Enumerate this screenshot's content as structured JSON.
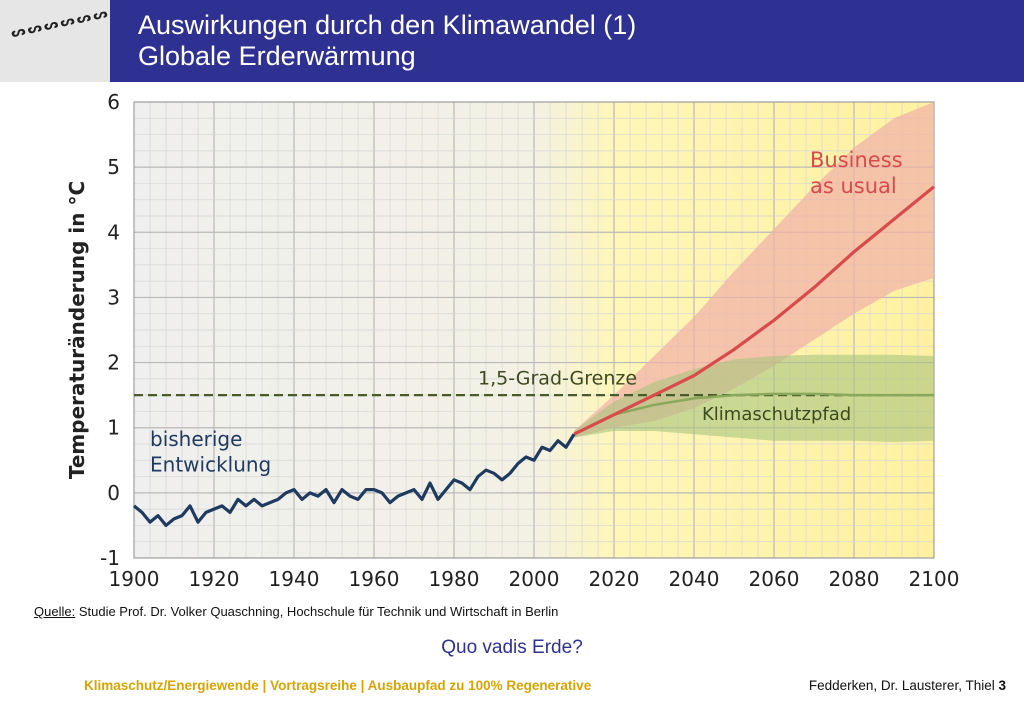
{
  "header": {
    "title_line1": "Auswirkungen durch den Klimawandel (1)",
    "title_line2": "Globale Erderwärmung",
    "background": "#2e3192"
  },
  "source": {
    "label": "Quelle:",
    "text": "Studie Prof. Dr. Volker Quaschning, Hochschule für Technik und Wirtschaft in Berlin"
  },
  "question": "Quo vadis Erde?",
  "footer": {
    "left": "Klimaschutz/Energiewende | Vortragsreihe | Ausbaupfad zu 100% Regenerative",
    "right_text": "Fedderken, Dr. Lausterer, Thiel",
    "page_number": "3"
  },
  "chart_data": {
    "type": "line",
    "ylabel": "Temperaturänderung in °C",
    "xlim": [
      1900,
      2100
    ],
    "ylim": [
      -1,
      6
    ],
    "x_ticks": [
      "1900",
      "1920",
      "1940",
      "1960",
      "1980",
      "2000",
      "2020",
      "2040",
      "2060",
      "2080",
      "2100"
    ],
    "y_ticks": [
      "-1",
      "0",
      "1",
      "2",
      "3",
      "4",
      "5",
      "6"
    ],
    "grid": true,
    "annotations": {
      "historical": [
        "bisherige",
        "Entwicklung"
      ],
      "business": [
        "Business",
        "as usual"
      ],
      "limit": "1,5-Grad-Grenze",
      "protection": "Klimaschutzpfad"
    },
    "limit_value": 1.5,
    "colors": {
      "historical": "#1f3a5f",
      "business": "#d94a4a",
      "business_band": "#f2b3a8",
      "protection": "#a9c47f",
      "limit": "#4a5a2a",
      "future_background": "#fff4a8"
    },
    "series": [
      {
        "key": "historical",
        "x": [
          1900,
          1902,
          1904,
          1906,
          1908,
          1910,
          1912,
          1914,
          1916,
          1918,
          1920,
          1922,
          1924,
          1926,
          1928,
          1930,
          1932,
          1934,
          1936,
          1938,
          1940,
          1942,
          1944,
          1946,
          1948,
          1950,
          1952,
          1954,
          1956,
          1958,
          1960,
          1962,
          1964,
          1966,
          1968,
          1970,
          1972,
          1974,
          1976,
          1978,
          1980,
          1982,
          1984,
          1986,
          1988,
          1990,
          1992,
          1994,
          1996,
          1998,
          2000,
          2002,
          2004,
          2006,
          2008,
          2010
        ],
        "y": [
          -0.2,
          -0.3,
          -0.45,
          -0.35,
          -0.5,
          -0.4,
          -0.35,
          -0.2,
          -0.45,
          -0.3,
          -0.25,
          -0.2,
          -0.3,
          -0.1,
          -0.2,
          -0.1,
          -0.2,
          -0.15,
          -0.1,
          0.0,
          0.05,
          -0.1,
          0.0,
          -0.05,
          0.05,
          -0.15,
          0.05,
          -0.05,
          -0.1,
          0.05,
          0.05,
          0.0,
          -0.15,
          -0.05,
          0.0,
          0.05,
          -0.1,
          0.15,
          -0.1,
          0.05,
          0.2,
          0.15,
          0.05,
          0.25,
          0.35,
          0.3,
          0.2,
          0.3,
          0.45,
          0.55,
          0.5,
          0.7,
          0.65,
          0.8,
          0.7,
          0.9
        ]
      },
      {
        "key": "business",
        "x": [
          2010,
          2020,
          2030,
          2040,
          2050,
          2060,
          2070,
          2080,
          2090,
          2100
        ],
        "y": [
          0.9,
          1.2,
          1.5,
          1.8,
          2.2,
          2.65,
          3.15,
          3.7,
          4.2,
          4.7
        ],
        "band_upper": [
          0.95,
          1.5,
          2.1,
          2.7,
          3.4,
          4.05,
          4.7,
          5.3,
          5.75,
          6.0
        ],
        "band_lower": [
          0.85,
          1.0,
          1.1,
          1.3,
          1.6,
          1.95,
          2.35,
          2.75,
          3.1,
          3.3
        ]
      },
      {
        "key": "protection",
        "x": [
          2010,
          2020,
          2030,
          2040,
          2050,
          2060,
          2070,
          2080,
          2090,
          2100
        ],
        "y": [
          0.9,
          1.2,
          1.35,
          1.45,
          1.5,
          1.52,
          1.52,
          1.5,
          1.5,
          1.5
        ],
        "band_upper": [
          0.95,
          1.4,
          1.7,
          1.9,
          2.05,
          2.1,
          2.12,
          2.12,
          2.12,
          2.1
        ],
        "band_lower": [
          0.85,
          0.95,
          0.95,
          0.9,
          0.85,
          0.8,
          0.8,
          0.8,
          0.78,
          0.8
        ]
      }
    ]
  }
}
